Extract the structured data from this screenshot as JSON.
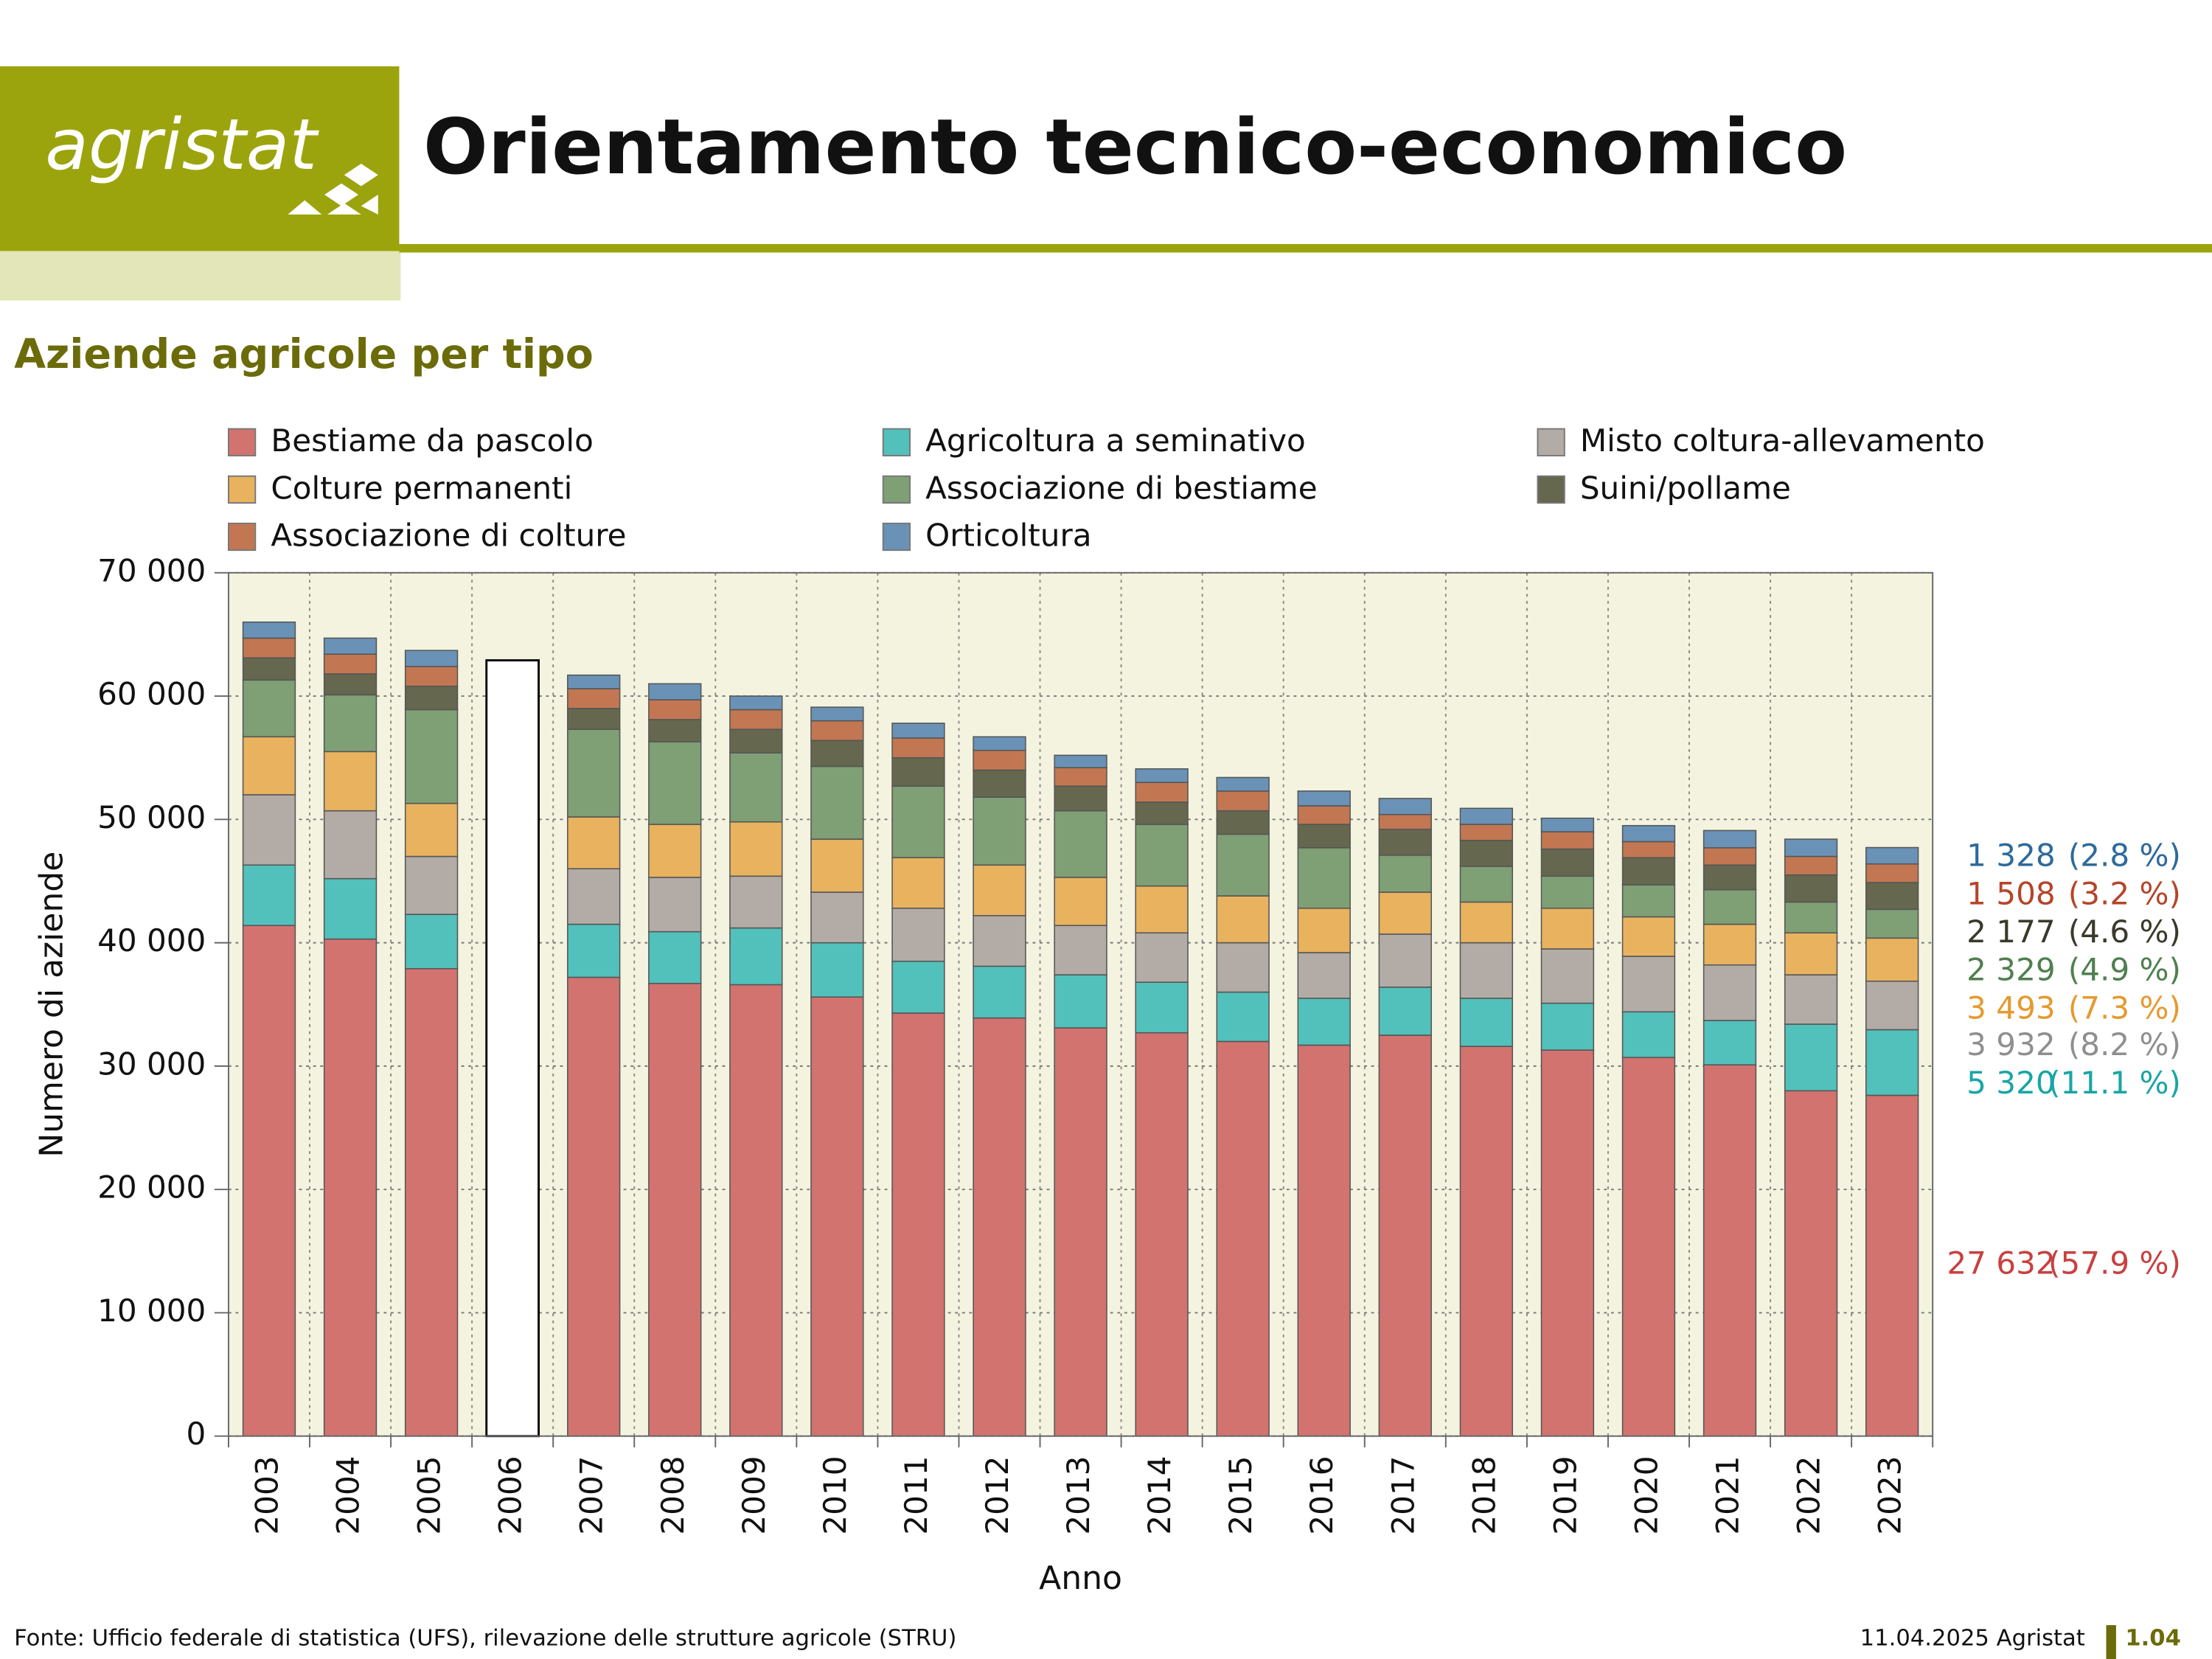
{
  "header": {
    "logo": "agristat",
    "title": "Orientamento tecnico-economico"
  },
  "chart_data": {
    "type": "stacked_bar",
    "title": "Aziende agricole per tipo",
    "x_label": "Anno",
    "y_label": "Numero di aziende",
    "categories": [
      "2003",
      "2004",
      "2005",
      "2006",
      "2007",
      "2008",
      "2009",
      "2010",
      "2011",
      "2012",
      "2013",
      "2014",
      "2015",
      "2016",
      "2017",
      "2018",
      "2019",
      "2020",
      "2021",
      "2022",
      "2023"
    ],
    "ylim": [
      0,
      70000
    ],
    "yticks": [
      0,
      {
        "value": 10000,
        "label": "10 000"
      },
      {
        "value": 20000,
        "label": "20 000"
      },
      {
        "value": 30000,
        "label": "30 000"
      },
      {
        "value": 40000,
        "label": "40 000"
      },
      {
        "value": 50000,
        "label": "50 000"
      },
      {
        "value": 60000,
        "label": "60 000"
      },
      {
        "value": 70000,
        "label": "70 000"
      }
    ],
    "grid": true,
    "background": "#f3f3df",
    "unsplit_totals": {
      "color": "#ffffff",
      "values": [
        null,
        null,
        null,
        62900,
        null,
        null,
        null,
        null,
        null,
        null,
        null,
        null,
        null,
        null,
        null,
        null,
        null,
        null,
        null,
        null,
        null
      ]
    },
    "series": [
      {
        "name": "Bestiame da pascolo",
        "color": "#d27370",
        "label_color": "#c8403f",
        "values": [
          41400,
          40300,
          37900,
          null,
          37200,
          36700,
          36600,
          35600,
          34300,
          33900,
          33100,
          32700,
          32000,
          31700,
          32500,
          31600,
          31300,
          30700,
          30100,
          28000,
          27632
        ],
        "value_labels": [
          null,
          null,
          null,
          null,
          null,
          null,
          null,
          null,
          null,
          null,
          null,
          null,
          null,
          null,
          null,
          null,
          null,
          null,
          null,
          null,
          "27 632"
        ],
        "share_labels": [
          null,
          null,
          null,
          null,
          null,
          null,
          null,
          null,
          null,
          null,
          null,
          null,
          null,
          null,
          null,
          null,
          null,
          null,
          null,
          null,
          "(57.9 %)"
        ]
      },
      {
        "name": "Agricoltura a seminativo",
        "color": "#52c0bb",
        "label_color": "#1aa5a5",
        "values": [
          4900,
          4900,
          4400,
          null,
          4300,
          4200,
          4600,
          4400,
          4200,
          4200,
          4300,
          4100,
          4000,
          3800,
          3900,
          3900,
          3800,
          3700,
          3600,
          5400,
          5320
        ],
        "value_labels": [
          null,
          null,
          null,
          null,
          null,
          null,
          null,
          null,
          null,
          null,
          null,
          null,
          null,
          null,
          null,
          null,
          null,
          null,
          null,
          null,
          "5 320"
        ],
        "share_labels": [
          null,
          null,
          null,
          null,
          null,
          null,
          null,
          null,
          null,
          null,
          null,
          null,
          null,
          null,
          null,
          null,
          null,
          null,
          null,
          null,
          "(11.1 %)"
        ]
      },
      {
        "name": "Misto coltura-allevamento",
        "color": "#b3aca6",
        "label_color": "#8f8f8f",
        "values": [
          5700,
          5500,
          4700,
          null,
          4500,
          4400,
          4200,
          4100,
          4300,
          4100,
          4000,
          4000,
          4000,
          3700,
          4300,
          4500,
          4400,
          4500,
          4500,
          4000,
          3932
        ],
        "value_labels": [
          null,
          null,
          null,
          null,
          null,
          null,
          null,
          null,
          null,
          null,
          null,
          null,
          null,
          null,
          null,
          null,
          null,
          null,
          null,
          null,
          "3 932"
        ],
        "share_labels": [
          null,
          null,
          null,
          null,
          null,
          null,
          null,
          null,
          null,
          null,
          null,
          null,
          null,
          null,
          null,
          null,
          null,
          null,
          null,
          null,
          "(8.2 %)"
        ]
      },
      {
        "name": "Colture permanenti",
        "color": "#e8b25e",
        "label_color": "#e59a2e",
        "values": [
          4700,
          4800,
          4300,
          null,
          4200,
          4300,
          4400,
          4300,
          4100,
          4100,
          3900,
          3800,
          3800,
          3600,
          3400,
          3300,
          3300,
          3200,
          3300,
          3400,
          3493
        ],
        "value_labels": [
          null,
          null,
          null,
          null,
          null,
          null,
          null,
          null,
          null,
          null,
          null,
          null,
          null,
          null,
          null,
          null,
          null,
          null,
          null,
          null,
          "3 493"
        ],
        "share_labels": [
          null,
          null,
          null,
          null,
          null,
          null,
          null,
          null,
          null,
          null,
          null,
          null,
          null,
          null,
          null,
          null,
          null,
          null,
          null,
          null,
          "(7.3 %)"
        ]
      },
      {
        "name": "Associazione di bestiame",
        "color": "#7f9f75",
        "label_color": "#4f7f4f",
        "values": [
          4600,
          4600,
          7600,
          null,
          7100,
          6700,
          5600,
          5900,
          5800,
          5500,
          5400,
          5000,
          5000,
          4900,
          3000,
          2900,
          2600,
          2600,
          2800,
          2500,
          2329
        ],
        "value_labels": [
          null,
          null,
          null,
          null,
          null,
          null,
          null,
          null,
          null,
          null,
          null,
          null,
          null,
          null,
          null,
          null,
          null,
          null,
          null,
          null,
          "2 329"
        ],
        "share_labels": [
          null,
          null,
          null,
          null,
          null,
          null,
          null,
          null,
          null,
          null,
          null,
          null,
          null,
          null,
          null,
          null,
          null,
          null,
          null,
          null,
          "(4.9 %)"
        ]
      },
      {
        "name": "Suini/pollame",
        "color": "#66674f",
        "label_color": "#3a3a2a",
        "values": [
          1800,
          1700,
          1900,
          null,
          1700,
          1800,
          1900,
          2100,
          2300,
          2200,
          2000,
          1800,
          1900,
          1900,
          2100,
          2100,
          2200,
          2200,
          2000,
          2200,
          2177
        ],
        "value_labels": [
          null,
          null,
          null,
          null,
          null,
          null,
          null,
          null,
          null,
          null,
          null,
          null,
          null,
          null,
          null,
          null,
          null,
          null,
          null,
          null,
          "2 177"
        ],
        "share_labels": [
          null,
          null,
          null,
          null,
          null,
          null,
          null,
          null,
          null,
          null,
          null,
          null,
          null,
          null,
          null,
          null,
          null,
          null,
          null,
          null,
          "(4.6 %)"
        ]
      },
      {
        "name": "Associazione di colture",
        "color": "#c27752",
        "label_color": "#b5452a",
        "values": [
          1600,
          1600,
          1600,
          null,
          1600,
          1600,
          1600,
          1600,
          1600,
          1600,
          1500,
          1600,
          1600,
          1500,
          1200,
          1300,
          1400,
          1300,
          1400,
          1500,
          1508
        ],
        "value_labels": [
          null,
          null,
          null,
          null,
          null,
          null,
          null,
          null,
          null,
          null,
          null,
          null,
          null,
          null,
          null,
          null,
          null,
          null,
          null,
          null,
          "1 508"
        ],
        "share_labels": [
          null,
          null,
          null,
          null,
          null,
          null,
          null,
          null,
          null,
          null,
          null,
          null,
          null,
          null,
          null,
          null,
          null,
          null,
          null,
          null,
          "(3.2 %)"
        ]
      },
      {
        "name": "Orticoltura",
        "color": "#6a92b6",
        "label_color": "#2e6a9a",
        "values": [
          1300,
          1300,
          1300,
          null,
          1100,
          1300,
          1100,
          1100,
          1200,
          1100,
          1000,
          1100,
          1100,
          1200,
          1300,
          1300,
          1100,
          1300,
          1400,
          1400,
          1328
        ],
        "value_labels": [
          null,
          null,
          null,
          null,
          null,
          null,
          null,
          null,
          null,
          null,
          null,
          null,
          null,
          null,
          null,
          null,
          null,
          null,
          null,
          null,
          "1 328"
        ],
        "share_labels": [
          null,
          null,
          null,
          null,
          null,
          null,
          null,
          null,
          null,
          null,
          null,
          null,
          null,
          null,
          null,
          null,
          null,
          null,
          null,
          null,
          "(2.8 %)"
        ]
      }
    ]
  },
  "footer": {
    "source": "Fonte: Ufficio federale di statistica (UFS), rilevazione delle strutture agricole (STRU)",
    "date": "11.04.2025 Agristat",
    "page": "1.04"
  }
}
